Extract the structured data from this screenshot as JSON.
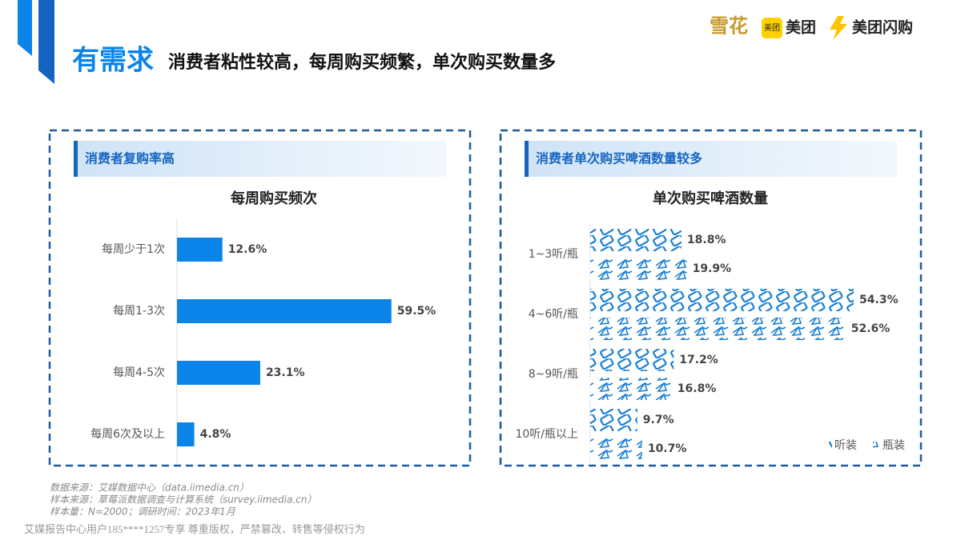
{
  "header": {
    "title_main": "有需求",
    "title_sub": "消费者粘性较高，每周购买频繁，单次购买数量多"
  },
  "logos": {
    "snow": "雪花",
    "meituan_icon": "美团",
    "meituan": "美团",
    "shangou": "美团闪购"
  },
  "panels": [
    {
      "heading": "消费者复购率高"
    },
    {
      "heading": "消费者单次购买啤酒数量较多"
    }
  ],
  "chart_data": [
    {
      "type": "bar",
      "orientation": "horizontal",
      "title": "每周购买频次",
      "categories": [
        "每周少于1次",
        "每周1-3次",
        "每周4-5次",
        "每周6次及以上"
      ],
      "values": [
        12.6,
        59.5,
        23.1,
        4.8
      ],
      "value_labels": [
        "12.6%",
        "59.5%",
        "23.1%",
        "4.8%"
      ],
      "color": "#0b84ea"
    },
    {
      "type": "bar",
      "orientation": "horizontal",
      "title": "单次购买啤酒数量",
      "categories": [
        "1~3听/瓶",
        "4~6听/瓶",
        "8~9听/瓶",
        "10听/瓶以上"
      ],
      "series": [
        {
          "name": "听装",
          "color": "#1a7fd4",
          "values": [
            18.8,
            54.3,
            17.2,
            9.7
          ],
          "value_labels": [
            "18.8%",
            "54.3%",
            "17.2%",
            "9.7%"
          ]
        },
        {
          "name": "瓶装",
          "color": "#1a7fd4",
          "values": [
            19.9,
            52.6,
            16.8,
            10.7
          ],
          "value_labels": [
            "19.9%",
            "52.6%",
            "16.8%",
            "10.7%"
          ]
        }
      ],
      "legend": "lower right"
    }
  ],
  "footer": {
    "notes": [
      "数据来源：艾媒数据中心（data.iimedia.cn）",
      "样本来源：草莓派数据调查与计算系统（survey.iimedia.cn）",
      "样本量：N=2000；调研时间：2023年1月"
    ],
    "watermark": "艾媒报告中心用户185****1257专享 尊重版权，严禁篡改、转售等侵权行为"
  }
}
